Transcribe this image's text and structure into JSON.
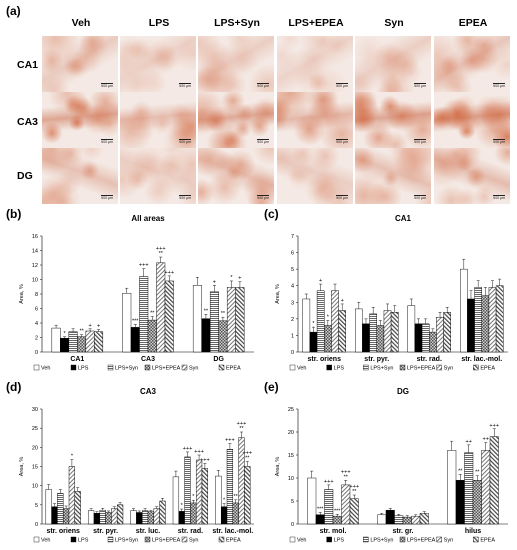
{
  "panels": {
    "a": "(a)",
    "b": "(b)",
    "c": "(c)",
    "d": "(d)",
    "e": "(e)"
  },
  "micrographs": {
    "columns": [
      "Veh",
      "LPS",
      "LPS+Syn",
      "LPS+EPEA",
      "Syn",
      "EPEA"
    ],
    "rows": [
      "CA1",
      "CA3",
      "DG"
    ],
    "scale_bar": "500 µm",
    "stain_colors": {
      "background": "#f4e9e4",
      "stain": "#d9622f",
      "dark": "#b9471d"
    }
  },
  "legend_entries": [
    "Veh",
    "LPS",
    "LPS+Syn",
    "LPS+EPEA",
    "Syn",
    "EPEA"
  ],
  "chart_data": [
    {
      "id": "b",
      "type": "bar",
      "title": "All areas",
      "ylabel": "Area, %",
      "ylim": [
        0,
        16
      ],
      "ticks": [
        0,
        2,
        4,
        6,
        8,
        10,
        12,
        14,
        16
      ],
      "categories": [
        "CA1",
        "CA3",
        "DG"
      ],
      "series": [
        {
          "name": "Veh",
          "values": [
            3.3,
            8.1,
            9.2
          ],
          "errors": [
            0.4,
            0.7,
            1.1
          ]
        },
        {
          "name": "LPS",
          "values": [
            1.9,
            3.4,
            4.6
          ],
          "errors": [
            0.2,
            0.4,
            0.6
          ]
        },
        {
          "name": "LPS+Syn",
          "values": [
            2.8,
            10.4,
            8.3
          ],
          "errors": [
            0.4,
            1.1,
            0.9
          ]
        },
        {
          "name": "LPS+EPEA",
          "values": [
            2.1,
            4.4,
            4.3
          ],
          "errors": [
            0.3,
            0.5,
            0.5
          ]
        },
        {
          "name": "Syn",
          "values": [
            2.9,
            12.3,
            8.9
          ],
          "errors": [
            0.3,
            0.8,
            0.9
          ]
        },
        {
          "name": "EPEA",
          "values": [
            2.8,
            9.8,
            8.9
          ],
          "errors": [
            0.3,
            0.7,
            0.8
          ]
        }
      ],
      "annotations": [
        [
          "",
          "*",
          "",
          "**",
          "+",
          "+"
        ],
        [
          "",
          "***",
          "+++",
          "**",
          "+++\n**",
          "+++"
        ],
        [
          "",
          "**",
          "+",
          "**",
          "*",
          "+"
        ]
      ]
    },
    {
      "id": "c",
      "type": "bar",
      "title": "CA1",
      "ylabel": "Area, %",
      "ylim": [
        0,
        7
      ],
      "ticks": [
        0,
        1,
        2,
        3,
        4,
        5,
        6,
        7
      ],
      "categories": [
        "str. oriens",
        "str. pyr.",
        "str. rad.",
        "str. lac.-mol."
      ],
      "series": [
        {
          "name": "Veh",
          "values": [
            3.2,
            2.6,
            2.8,
            5.0
          ],
          "errors": [
            0.3,
            0.4,
            0.4,
            0.6
          ]
        },
        {
          "name": "LPS",
          "values": [
            1.2,
            1.7,
            1.7,
            3.2
          ],
          "errors": [
            0.3,
            0.3,
            0.3,
            0.5
          ]
        },
        {
          "name": "LPS+Syn",
          "values": [
            3.7,
            2.3,
            1.7,
            3.9
          ],
          "errors": [
            0.4,
            0.4,
            0.3,
            0.4
          ]
        },
        {
          "name": "LPS+EPEA",
          "values": [
            1.6,
            1.6,
            1.2,
            3.4
          ],
          "errors": [
            0.3,
            0.3,
            0.2,
            0.5
          ]
        },
        {
          "name": "Syn",
          "values": [
            3.7,
            2.5,
            2.1,
            3.9
          ],
          "errors": [
            0.4,
            0.4,
            0.3,
            0.4
          ]
        },
        {
          "name": "EPEA",
          "values": [
            2.5,
            2.4,
            2.4,
            4.0
          ],
          "errors": [
            0.4,
            0.4,
            0.3,
            0.4
          ]
        }
      ],
      "annotations": [
        [
          "",
          "*",
          "+",
          "*",
          "",
          "+"
        ],
        [
          "",
          "",
          "",
          "",
          "",
          ""
        ],
        [
          "",
          "",
          "",
          "",
          "",
          ""
        ],
        [
          "",
          "",
          "",
          "",
          "",
          ""
        ]
      ]
    },
    {
      "id": "d",
      "type": "bar",
      "title": "CA3",
      "ylabel": "Area, %",
      "ylim": [
        0,
        30
      ],
      "ticks": [
        0,
        5,
        10,
        15,
        20,
        25,
        30
      ],
      "categories": [
        "str. oriens",
        "str. pyr.",
        "str. luc.",
        "str. rad.",
        "str. lac.-mol."
      ],
      "series": [
        {
          "name": "Veh",
          "values": [
            9.0,
            3.5,
            3.5,
            12.3,
            12.5
          ],
          "errors": [
            1.3,
            0.5,
            0.5,
            1.5,
            1.5
          ]
        },
        {
          "name": "LPS",
          "values": [
            4.5,
            2.8,
            3.0,
            3.3,
            4.5
          ],
          "errors": [
            0.8,
            0.4,
            0.4,
            0.6,
            0.8
          ]
        },
        {
          "name": "LPS+Syn",
          "values": [
            8.0,
            3.6,
            3.5,
            17.5,
            19.5
          ],
          "errors": [
            1.0,
            0.5,
            0.5,
            1.3,
            1.5
          ]
        },
        {
          "name": "LPS+EPEA",
          "values": [
            4.0,
            3.0,
            3.2,
            5.5,
            5.5
          ],
          "errors": [
            0.7,
            0.4,
            0.4,
            0.7,
            0.8
          ]
        },
        {
          "name": "Syn",
          "values": [
            15.0,
            4.0,
            4.0,
            16.7,
            22.5
          ],
          "errors": [
            1.8,
            0.5,
            0.5,
            1.3,
            1.5
          ]
        },
        {
          "name": "EPEA",
          "values": [
            8.5,
            5.0,
            6.0,
            14.5,
            15.0
          ],
          "errors": [
            1.0,
            0.6,
            0.7,
            1.3,
            1.3
          ]
        }
      ],
      "annotations": [
        [
          "",
          "",
          "",
          "",
          "*",
          ""
        ],
        [
          "",
          "",
          "",
          "",
          "",
          ""
        ],
        [
          "",
          "",
          "",
          "",
          "",
          ""
        ],
        [
          "",
          "*",
          "+++",
          "*",
          "+++",
          "+++"
        ],
        [
          "",
          "*",
          "+++",
          "**",
          "+++\n**",
          "+++\n**"
        ]
      ]
    },
    {
      "id": "e",
      "type": "bar",
      "title": "DG",
      "ylabel": "Area, %",
      "ylim": [
        0,
        25
      ],
      "ticks": [
        0,
        5,
        10,
        15,
        20,
        25
      ],
      "categories": [
        "str. mol.",
        "str. gr.",
        "hilus"
      ],
      "series": [
        {
          "name": "Veh",
          "values": [
            10.0,
            2.0,
            16.0
          ],
          "errors": [
            1.5,
            0.3,
            2.0
          ]
        },
        {
          "name": "LPS",
          "values": [
            2.0,
            3.0,
            9.5
          ],
          "errors": [
            0.5,
            0.4,
            1.3
          ]
        },
        {
          "name": "LPS+Syn",
          "values": [
            7.5,
            1.8,
            15.5
          ],
          "errors": [
            1.0,
            0.3,
            1.7
          ]
        },
        {
          "name": "LPS+EPEA",
          "values": [
            1.7,
            1.5,
            9.5
          ],
          "errors": [
            0.4,
            0.3,
            1.0
          ]
        },
        {
          "name": "Syn",
          "values": [
            8.5,
            1.7,
            16.0
          ],
          "errors": [
            1.0,
            0.3,
            1.7
          ]
        },
        {
          "name": "EPEA",
          "values": [
            5.5,
            2.3,
            19.0
          ],
          "errors": [
            0.8,
            0.4,
            1.7
          ]
        }
      ],
      "annotations": [
        [
          "",
          "***",
          "+++",
          "***",
          "+++\n**",
          "+++\n**"
        ],
        [
          "",
          "",
          "",
          "",
          "",
          ""
        ],
        [
          "",
          "**",
          "++",
          "**",
          "++",
          "+++"
        ]
      ]
    }
  ]
}
